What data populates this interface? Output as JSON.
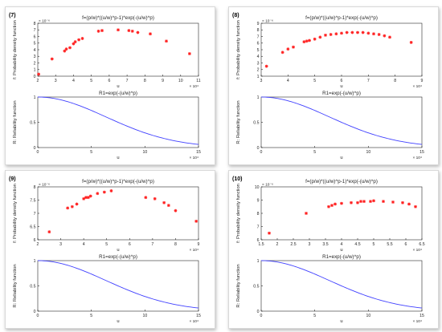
{
  "chart_data": [
    {
      "panel_label": "(7)",
      "top": {
        "type": "scatter",
        "title": "f=(p/w)*((u/w)^p-1)*exp(-(u/w)^p)",
        "ylabel": "f: Probability density function",
        "xlabel": "u",
        "x_exponent": "× 10⁴",
        "y_exponent": "× 10⁻⁶",
        "xlim": [
          2,
          11
        ],
        "ylim": [
          0,
          8
        ],
        "xticks": [
          2,
          3,
          4,
          5,
          6,
          7,
          8,
          9,
          10,
          11
        ],
        "yticks": [
          0,
          1,
          2,
          3,
          4,
          5,
          6,
          7,
          8
        ],
        "marker_color": "#ff2020",
        "points": [
          [
            2.05,
            0.3
          ],
          [
            2.8,
            2.6
          ],
          [
            3.5,
            3.8
          ],
          [
            3.6,
            4.1
          ],
          [
            3.8,
            4.3
          ],
          [
            4.0,
            4.9
          ],
          [
            4.1,
            5.2
          ],
          [
            4.3,
            5.5
          ],
          [
            4.5,
            5.7
          ],
          [
            5.4,
            6.8
          ],
          [
            5.6,
            6.9
          ],
          [
            6.5,
            7.0
          ],
          [
            7.1,
            6.9
          ],
          [
            7.3,
            6.8
          ],
          [
            7.6,
            6.6
          ],
          [
            8.3,
            6.4
          ],
          [
            9.2,
            5.3
          ],
          [
            10.5,
            3.4
          ]
        ]
      },
      "bottom": {
        "type": "line",
        "title": "R1=exp(-(u/w)^p)",
        "ylabel": "R: Reliability function",
        "xlabel": "u",
        "x_exponent": "× 10⁴",
        "xlim": [
          0,
          15
        ],
        "ylim": [
          0,
          1
        ],
        "xticks": [
          0,
          5,
          10,
          15
        ],
        "yticks": [
          0,
          0.5,
          1
        ],
        "line_color": "#4040ff",
        "p": 2,
        "w": 9
      }
    },
    {
      "panel_label": "(8)",
      "top": {
        "type": "scatter",
        "title": "f=(p/w)*((u/w)^p-1)*exp(-(u/w)^p)",
        "ylabel": "f: Probability density function",
        "xlabel": "u",
        "x_exponent": "× 10⁴",
        "y_exponent": "× 10⁻⁶",
        "xlim": [
          3,
          9
        ],
        "ylim": [
          1,
          9
        ],
        "xticks": [
          3,
          4,
          5,
          6,
          7,
          8,
          9
        ],
        "yticks": [
          1,
          2,
          3,
          4,
          5,
          6,
          7,
          8,
          9
        ],
        "marker_color": "#ff2020",
        "points": [
          [
            3.2,
            2.5
          ],
          [
            3.8,
            4.6
          ],
          [
            4.0,
            5.1
          ],
          [
            4.2,
            5.4
          ],
          [
            4.6,
            6.2
          ],
          [
            4.7,
            6.3
          ],
          [
            4.8,
            6.4
          ],
          [
            5.0,
            6.6
          ],
          [
            5.2,
            6.9
          ],
          [
            5.4,
            7.2
          ],
          [
            5.6,
            7.3
          ],
          [
            5.8,
            7.4
          ],
          [
            6.0,
            7.5
          ],
          [
            6.2,
            7.6
          ],
          [
            6.4,
            7.6
          ],
          [
            6.6,
            7.6
          ],
          [
            6.8,
            7.6
          ],
          [
            7.0,
            7.5
          ],
          [
            7.2,
            7.4
          ],
          [
            7.4,
            7.3
          ],
          [
            7.6,
            7.1
          ],
          [
            7.8,
            6.9
          ],
          [
            8.6,
            6.1
          ]
        ]
      },
      "bottom": {
        "type": "line",
        "title": "R1=exp(-(u/w)^p)",
        "ylabel": "R: Reliability function",
        "xlabel": "u",
        "x_exponent": "× 10⁴",
        "xlim": [
          0,
          15
        ],
        "ylim": [
          0,
          1
        ],
        "xticks": [
          0,
          5,
          10,
          15
        ],
        "yticks": [
          0,
          0.5,
          1
        ],
        "line_color": "#4040ff",
        "p": 2,
        "w": 9
      }
    },
    {
      "panel_label": "(9)",
      "top": {
        "type": "scatter",
        "title": "f=(p/w)*((u/w)^p-1)*exp(-(u/w)^p)",
        "ylabel": "f: Probability density function",
        "xlabel": "u",
        "x_exponent": "× 10⁴",
        "y_exponent": "× 10⁻⁶",
        "xlim": [
          2,
          9
        ],
        "ylim": [
          6,
          8
        ],
        "xticks": [
          2,
          3,
          4,
          5,
          6,
          7,
          8,
          9
        ],
        "yticks": [
          6,
          6.5,
          7,
          7.5,
          8
        ],
        "marker_color": "#ff2020",
        "points": [
          [
            2.5,
            6.3
          ],
          [
            3.3,
            7.2
          ],
          [
            3.5,
            7.25
          ],
          [
            3.7,
            7.35
          ],
          [
            4.0,
            7.55
          ],
          [
            4.1,
            7.6
          ],
          [
            4.2,
            7.6
          ],
          [
            4.3,
            7.65
          ],
          [
            4.6,
            7.75
          ],
          [
            4.9,
            7.8
          ],
          [
            5.2,
            7.85
          ],
          [
            6.7,
            7.6
          ],
          [
            7.1,
            7.55
          ],
          [
            7.5,
            7.4
          ],
          [
            7.7,
            7.3
          ],
          [
            8.0,
            7.1
          ],
          [
            8.9,
            6.7
          ]
        ]
      },
      "bottom": {
        "type": "line",
        "title": "R1=exp(-(u/w)^p)",
        "ylabel": "R: Reliability function",
        "xlabel": "u",
        "x_exponent": "× 10⁴",
        "xlim": [
          0,
          15
        ],
        "ylim": [
          0,
          1
        ],
        "xticks": [
          0,
          5,
          10,
          15
        ],
        "yticks": [
          0,
          0.5,
          1
        ],
        "line_color": "#4040ff",
        "p": 2,
        "w": 9
      }
    },
    {
      "panel_label": "(10)",
      "top": {
        "type": "scatter",
        "title": "f=(p/w)*((u/w)^p-1)*exp(-(u/w)^p)",
        "ylabel": "f: Probability density function",
        "xlabel": "u",
        "x_exponent": "× 10⁴",
        "y_exponent": "× 10⁻⁶",
        "xlim": [
          1.5,
          6.5
        ],
        "ylim": [
          6,
          10
        ],
        "xticks": [
          1.5,
          2,
          2.5,
          3,
          3.5,
          4,
          4.5,
          5,
          5.5,
          6,
          6.5
        ],
        "yticks": [
          6,
          7,
          8,
          9,
          10
        ],
        "marker_color": "#ff2020",
        "points": [
          [
            1.75,
            6.5
          ],
          [
            2.9,
            8.0
          ],
          [
            3.6,
            8.5
          ],
          [
            3.7,
            8.6
          ],
          [
            3.8,
            8.7
          ],
          [
            4.0,
            8.75
          ],
          [
            4.3,
            8.8
          ],
          [
            4.5,
            8.8
          ],
          [
            4.6,
            8.9
          ],
          [
            4.7,
            8.9
          ],
          [
            4.9,
            8.9
          ],
          [
            5.0,
            8.95
          ],
          [
            5.3,
            8.9
          ],
          [
            5.6,
            8.85
          ],
          [
            5.9,
            8.8
          ],
          [
            6.1,
            8.7
          ],
          [
            6.3,
            8.5
          ]
        ]
      },
      "bottom": {
        "type": "line",
        "title": "R1=exp(-(u/w)^p)",
        "ylabel": "R: Reliability function",
        "xlabel": "u",
        "x_exponent": "× 10⁴",
        "xlim": [
          0,
          15
        ],
        "ylim": [
          0,
          1
        ],
        "xticks": [
          0,
          5,
          10,
          15
        ],
        "yticks": [
          0,
          0.5,
          1
        ],
        "line_color": "#4040ff",
        "p": 2,
        "w": 9
      }
    }
  ]
}
